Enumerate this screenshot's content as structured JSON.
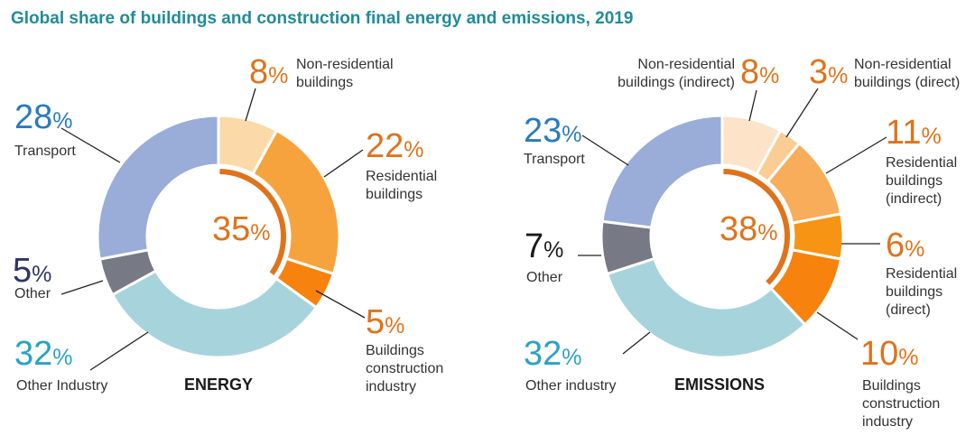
{
  "title": "Global share of buildings and construction final energy and emissions, 2019",
  "colors": {
    "title": "#1f8c99",
    "orange_text": "#e0731a",
    "blue_text": "#2a7bbd",
    "teal_text": "#29a3c7",
    "navy_text": "#2e3566",
    "black_text": "#1a1a1a",
    "highlight_arc": "#e0731a"
  },
  "chart_data": [
    {
      "type": "pie",
      "variant": "donut",
      "label": "ENERGY",
      "center_value": "35",
      "unit": "%",
      "slices": [
        {
          "name": "Non-residential buildings",
          "value": 8,
          "color": "#fcd9a8",
          "value_color": "#e0731a"
        },
        {
          "name": "Residential buildings",
          "value": 22,
          "color": "#f7a33d",
          "value_color": "#e0731a"
        },
        {
          "name": "Buildings construction industry",
          "value": 5,
          "color": "#f7820e",
          "value_color": "#e0731a"
        },
        {
          "name": "Other Industry",
          "value": 32,
          "color": "#a7d4dc",
          "value_color": "#29a3c7"
        },
        {
          "name": "Other",
          "value": 5,
          "color": "#777985",
          "value_color": "#2e3566"
        },
        {
          "name": "Transport",
          "value": 28,
          "color": "#99add8",
          "value_color": "#2a7bbd"
        }
      ]
    },
    {
      "type": "pie",
      "variant": "donut",
      "label": "EMISSIONS",
      "center_value": "38",
      "unit": "%",
      "slices": [
        {
          "name": "Non-residential buildings (indirect)",
          "value": 8,
          "color": "#fde3c8",
          "value_color": "#e0731a"
        },
        {
          "name": "Non-residential buildings (direct)",
          "value": 3,
          "color": "#fbcc93",
          "value_color": "#e0731a"
        },
        {
          "name": "Residential buildings (indirect)",
          "value": 11,
          "color": "#f7ad5a",
          "value_color": "#e0731a"
        },
        {
          "name": "Residential buildings (direct)",
          "value": 6,
          "color": "#f89413",
          "value_color": "#e0731a"
        },
        {
          "name": "Buildings construction industry",
          "value": 10,
          "color": "#f7820e",
          "value_color": "#e0731a"
        },
        {
          "name": "Other industry",
          "value": 32,
          "color": "#a7d4dc",
          "value_color": "#29a3c7"
        },
        {
          "name": "Other",
          "value": 7,
          "color": "#777985",
          "value_color": "#1a1a1a"
        },
        {
          "name": "Transport",
          "value": 23,
          "color": "#99add8",
          "value_color": "#2a7bbd"
        }
      ]
    }
  ],
  "labels": {
    "energy": {
      "nonres": {
        "value": "8",
        "sym": "%",
        "text": [
          "Non-residential",
          "buildings"
        ]
      },
      "res": {
        "value": "22",
        "sym": "%",
        "text": [
          "Residential",
          "buildings"
        ]
      },
      "bci": {
        "value": "5",
        "sym": "%",
        "text": [
          "Buildings",
          "construction",
          "industry"
        ]
      },
      "other_industry": {
        "value": "32",
        "sym": "%",
        "text": [
          "Other Industry"
        ]
      },
      "other": {
        "value": "5",
        "sym": "%",
        "text": [
          "Other"
        ]
      },
      "transport": {
        "value": "28",
        "sym": "%",
        "text": [
          "Transport"
        ]
      }
    },
    "emissions": {
      "nonres_ind": {
        "value": "8",
        "sym": "%",
        "text": [
          "Non-residential",
          "buildings (indirect)"
        ]
      },
      "nonres_dir": {
        "value": "3",
        "sym": "%",
        "text": [
          "Non-residential",
          "buildings (direct)"
        ]
      },
      "res_ind": {
        "value": "11",
        "sym": "%",
        "text": [
          "Residential",
          "buildings",
          "(indirect)"
        ]
      },
      "res_dir": {
        "value": "6",
        "sym": "%",
        "text": [
          "Residential",
          "buildings",
          "(direct)"
        ]
      },
      "bci": {
        "value": "10",
        "sym": "%",
        "text": [
          "Buildings",
          "construction",
          "industry"
        ]
      },
      "other_industry": {
        "value": "32",
        "sym": "%",
        "text": [
          "Other industry"
        ]
      },
      "other": {
        "value": "7",
        "sym": "%",
        "text": [
          "Other"
        ]
      },
      "transport": {
        "value": "23",
        "sym": "%",
        "text": [
          "Transport"
        ]
      }
    }
  }
}
